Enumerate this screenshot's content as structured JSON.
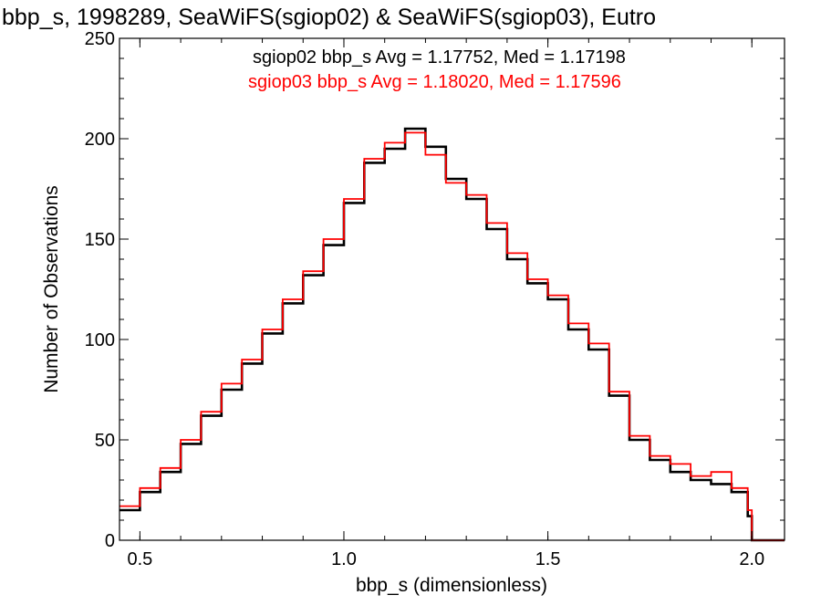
{
  "chart_data": {
    "type": "line",
    "step": true,
    "title": "bbp_s, 1998289, SeaWiFS(sgiop02) & SeaWiFS(sgiop03), Eutro",
    "xlabel": "bbp_s (dimensionless)",
    "ylabel": "Number of Observations",
    "xlim": [
      0.45,
      2.08
    ],
    "ylim": [
      0,
      250
    ],
    "xticks": [
      0.5,
      1.0,
      1.5,
      2.0
    ],
    "xtick_labels": [
      "0.5",
      "1.0",
      "1.5",
      "2.0"
    ],
    "yticks": [
      0,
      50,
      100,
      150,
      200,
      250
    ],
    "ytick_labels": [
      "0",
      "50",
      "100",
      "150",
      "200",
      "250"
    ],
    "grid": false,
    "annotations": [
      {
        "text": "sgiop02 bbp_s Avg = 1.17752, Med = 1.17198",
        "color": "#000000"
      },
      {
        "text": "sgiop03 bbp_s Avg = 1.18020, Med = 1.17596",
        "color": "#ff0000"
      }
    ],
    "series": [
      {
        "color": "#000000",
        "x": [
          0.45,
          0.5,
          0.55,
          0.6,
          0.65,
          0.7,
          0.75,
          0.8,
          0.85,
          0.9,
          0.95,
          1.0,
          1.05,
          1.1,
          1.15,
          1.2,
          1.25,
          1.3,
          1.35,
          1.4,
          1.45,
          1.5,
          1.55,
          1.6,
          1.65,
          1.7,
          1.75,
          1.8,
          1.85,
          1.9,
          1.95,
          1.99,
          2.0,
          2.08
        ],
        "y": [
          15,
          24,
          34,
          48,
          62,
          75,
          88,
          103,
          118,
          132,
          147,
          168,
          188,
          195,
          205,
          196,
          180,
          170,
          155,
          140,
          128,
          120,
          105,
          95,
          72,
          50,
          40,
          34,
          30,
          28,
          24,
          12,
          0,
          0
        ]
      },
      {
        "color": "#ff0000",
        "x": [
          0.45,
          0.5,
          0.55,
          0.6,
          0.65,
          0.7,
          0.75,
          0.8,
          0.85,
          0.9,
          0.95,
          1.0,
          1.05,
          1.1,
          1.15,
          1.2,
          1.25,
          1.3,
          1.35,
          1.4,
          1.45,
          1.5,
          1.55,
          1.6,
          1.65,
          1.7,
          1.75,
          1.8,
          1.85,
          1.9,
          1.95,
          1.99,
          2.0,
          2.08
        ],
        "y": [
          17,
          26,
          36,
          50,
          64,
          78,
          90,
          105,
          120,
          134,
          150,
          170,
          190,
          198,
          203,
          192,
          178,
          172,
          158,
          143,
          130,
          122,
          108,
          98,
          74,
          52,
          42,
          38,
          32,
          34,
          26,
          15,
          0,
          0
        ]
      }
    ]
  }
}
